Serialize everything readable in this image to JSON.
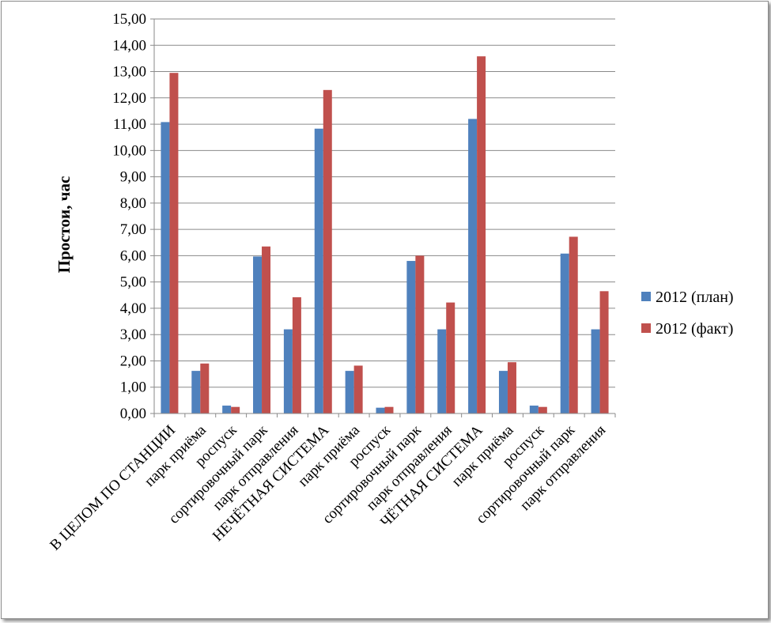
{
  "chart_data": {
    "type": "bar",
    "ylabel": "Простои, час",
    "xlabel": "",
    "ylim": [
      0,
      15
    ],
    "ytick_labels": [
      "0,00",
      "1,00",
      "2,00",
      "3,00",
      "4,00",
      "5,00",
      "6,00",
      "7,00",
      "8,00",
      "9,00",
      "10,00",
      "11,00",
      "12,00",
      "13,00",
      "14,00",
      "15,00"
    ],
    "grid": true,
    "legend_position": "right",
    "categories": [
      "В ЦЕЛОМ ПО СТАНЦИИ",
      "парк приёма",
      "роспуск",
      "сортировочный парк",
      "парк отправления",
      "НЕЧЁТНАЯ СИСТЕМА",
      "парк приёма",
      "роспуск",
      "сортировочный парк",
      "парк отправления",
      "ЧЁТНАЯ СИСТЕМА",
      "парк приёма",
      "роспуск",
      "сортировочный парк",
      "парк отправления"
    ],
    "series": [
      {
        "name": "2012 (план)",
        "color": "#4f81bd",
        "values": [
          11.08,
          1.62,
          0.3,
          5.97,
          3.2,
          10.83,
          1.62,
          0.22,
          5.8,
          3.2,
          11.2,
          1.62,
          0.3,
          6.08,
          3.2
        ]
      },
      {
        "name": "2012 (факт)",
        "color": "#c0504d",
        "values": [
          12.95,
          1.9,
          0.25,
          6.35,
          4.42,
          12.3,
          1.82,
          0.25,
          6.0,
          4.22,
          13.58,
          1.95,
          0.25,
          6.72,
          4.65
        ]
      }
    ]
  }
}
